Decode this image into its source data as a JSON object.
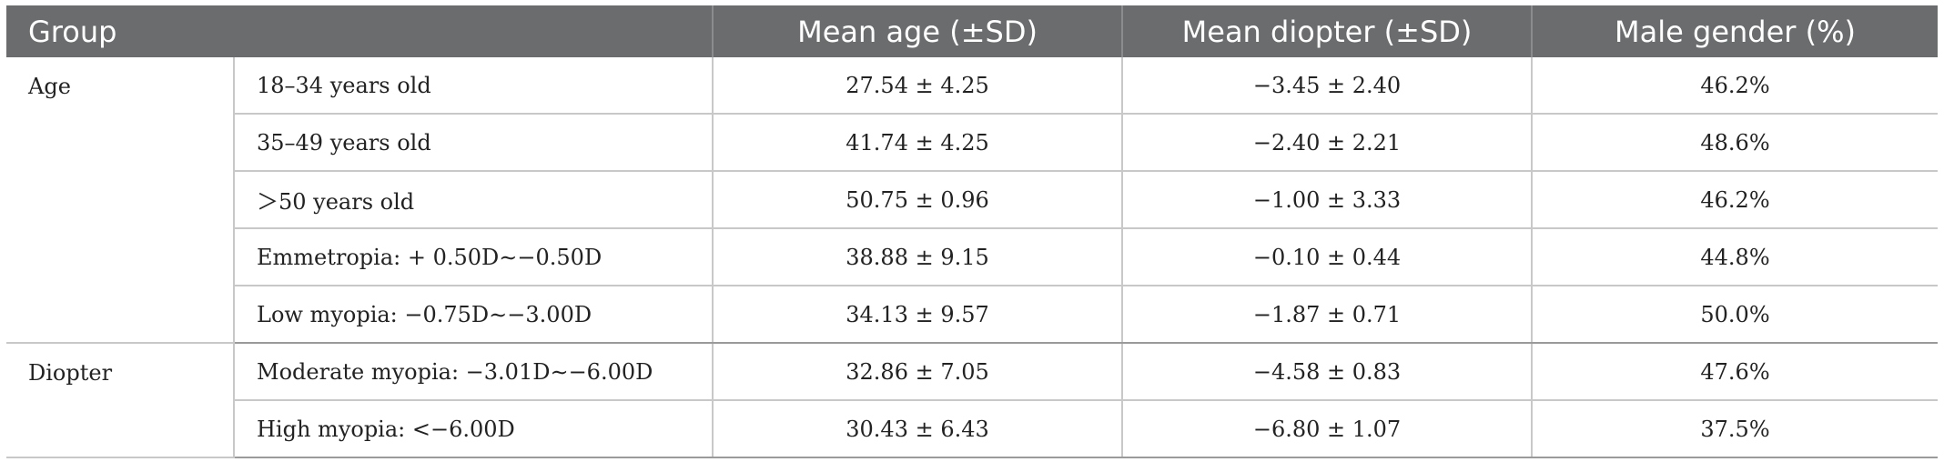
{
  "header": {
    "group": "Group",
    "mean_age": "Mean age (±SD)",
    "mean_diopter": "Mean diopter (±SD)",
    "male_gender": "Male gender (%)"
  },
  "groups": {
    "age": "Age",
    "diopter": "Diopter"
  },
  "rows": [
    {
      "subgroup": "18–34 years old",
      "mean_age": "27.54 ± 4.25",
      "mean_diopter": "−3.45 ± 2.40",
      "male": "46.2%"
    },
    {
      "subgroup": "35–49 years old",
      "mean_age": "41.74 ± 4.25",
      "mean_diopter": "−2.40 ± 2.21",
      "male": "48.6%"
    },
    {
      "subgroup": "＞50 years old",
      "mean_age": "50.75 ± 0.96",
      "mean_diopter": "−1.00 ± 3.33",
      "male": "46.2%"
    },
    {
      "subgroup": "Emmetropia: + 0.50D∼−0.50D",
      "mean_age": "38.88 ± 9.15",
      "mean_diopter": "−0.10 ± 0.44",
      "male": "44.8%"
    },
    {
      "subgroup": "Low myopia: −0.75D∼−3.00D",
      "mean_age": "34.13 ± 9.57",
      "mean_diopter": "−1.87 ± 0.71",
      "male": "50.0%"
    },
    {
      "subgroup": "Moderate myopia: −3.01D∼−6.00D",
      "mean_age": "32.86 ± 7.05",
      "mean_diopter": "−4.58 ± 0.83",
      "male": "47.6%"
    },
    {
      "subgroup": "High myopia: <−6.00D",
      "mean_age": "30.43 ± 6.43",
      "mean_diopter": "−6.80 ± 1.07",
      "male": "37.5%"
    }
  ]
}
